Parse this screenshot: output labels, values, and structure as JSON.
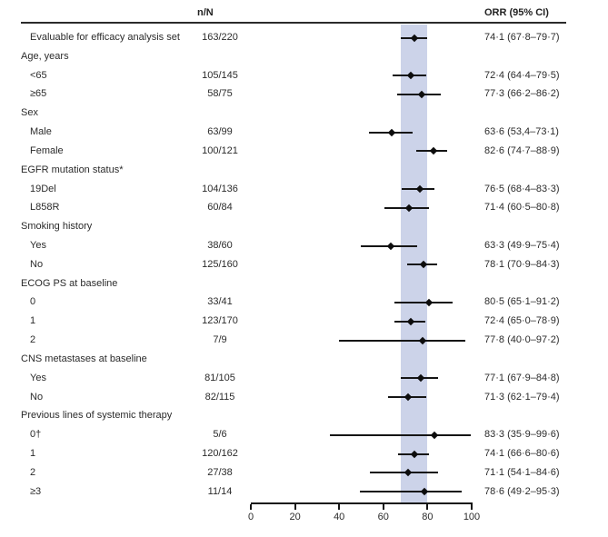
{
  "chart_data": {
    "type": "scatter",
    "subtype": "forest-plot",
    "columns": {
      "n_label": "n/N",
      "orr_label": "ORR (95% CI)"
    },
    "axis": {
      "min": 0,
      "max": 100,
      "ticks": [
        0,
        20,
        40,
        60,
        80,
        100
      ]
    },
    "band": {
      "low": 67.8,
      "high": 79.7,
      "meaning": "overall ORR 95% CI"
    },
    "colors": {
      "band": "#ccd3e9",
      "line": "#151515",
      "text": "#2b2b2b"
    },
    "rows": [
      {
        "group": false,
        "label": "Evaluable for efficacy analysis set",
        "n": "163/220",
        "orr": "74·1 (67·8–79·7)",
        "est": 74.1,
        "lo": 67.8,
        "hi": 79.7
      },
      {
        "group": true,
        "label": "Age, years",
        "n": "",
        "orr": "",
        "est": null,
        "lo": null,
        "hi": null
      },
      {
        "group": false,
        "label": "<65",
        "n": "105/145",
        "orr": "72·4 (64·4–79·5)",
        "est": 72.4,
        "lo": 64.4,
        "hi": 79.5
      },
      {
        "group": false,
        "label": "≥65",
        "n": "58/75",
        "orr": "77·3 (66·2–86·2)",
        "est": 77.3,
        "lo": 66.2,
        "hi": 86.2
      },
      {
        "group": true,
        "label": "Sex",
        "n": "",
        "orr": "",
        "est": null,
        "lo": null,
        "hi": null
      },
      {
        "group": false,
        "label": "Male",
        "n": "63/99",
        "orr": "63·6 (53,4–73·1)",
        "est": 63.6,
        "lo": 53.4,
        "hi": 73.1
      },
      {
        "group": false,
        "label": "Female",
        "n": "100/121",
        "orr": "82·6 (74·7–88·9)",
        "est": 82.6,
        "lo": 74.7,
        "hi": 88.9
      },
      {
        "group": true,
        "label": "EGFR mutation status*",
        "n": "",
        "orr": "",
        "est": null,
        "lo": null,
        "hi": null
      },
      {
        "group": false,
        "label": "19Del",
        "n": "104/136",
        "orr": "76·5 (68·4–83·3)",
        "est": 76.5,
        "lo": 68.4,
        "hi": 83.3
      },
      {
        "group": false,
        "label": "L858R",
        "n": "60/84",
        "orr": "71·4 (60·5–80·8)",
        "est": 71.4,
        "lo": 60.5,
        "hi": 80.8
      },
      {
        "group": true,
        "label": "Smoking history",
        "n": "",
        "orr": "",
        "est": null,
        "lo": null,
        "hi": null
      },
      {
        "group": false,
        "label": "Yes",
        "n": "38/60",
        "orr": "63·3 (49·9–75·4)",
        "est": 63.3,
        "lo": 49.9,
        "hi": 75.4
      },
      {
        "group": false,
        "label": "No",
        "n": "125/160",
        "orr": "78·1 (70·9–84·3)",
        "est": 78.1,
        "lo": 70.9,
        "hi": 84.3
      },
      {
        "group": true,
        "label": "ECOG PS at baseline",
        "n": "",
        "orr": "",
        "est": null,
        "lo": null,
        "hi": null
      },
      {
        "group": false,
        "label": "0",
        "n": "33/41",
        "orr": "80·5 (65·1–91·2)",
        "est": 80.5,
        "lo": 65.1,
        "hi": 91.2
      },
      {
        "group": false,
        "label": "1",
        "n": "123/170",
        "orr": "72·4 (65·0–78·9)",
        "est": 72.4,
        "lo": 65.0,
        "hi": 78.9
      },
      {
        "group": false,
        "label": "2",
        "n": "7/9",
        "orr": "77·8 (40·0–97·2)",
        "est": 77.8,
        "lo": 40.0,
        "hi": 97.2
      },
      {
        "group": true,
        "label": "CNS metastases at baseline",
        "n": "",
        "orr": "",
        "est": null,
        "lo": null,
        "hi": null
      },
      {
        "group": false,
        "label": "Yes",
        "n": "81/105",
        "orr": "77·1 (67·9–84·8)",
        "est": 77.1,
        "lo": 67.9,
        "hi": 84.8
      },
      {
        "group": false,
        "label": "No",
        "n": "82/115",
        "orr": "71·3 (62·1–79·4)",
        "est": 71.3,
        "lo": 62.1,
        "hi": 79.4
      },
      {
        "group": true,
        "label": "Previous lines of systemic therapy",
        "n": "",
        "orr": "",
        "est": null,
        "lo": null,
        "hi": null
      },
      {
        "group": false,
        "label": "0†",
        "n": "5/6",
        "orr": "83·3 (35·9–99·6)",
        "est": 83.3,
        "lo": 35.9,
        "hi": 99.6
      },
      {
        "group": false,
        "label": "1",
        "n": "120/162",
        "orr": "74·1 (66·6–80·6)",
        "est": 74.1,
        "lo": 66.6,
        "hi": 80.6
      },
      {
        "group": false,
        "label": "2",
        "n": "27/38",
        "orr": "71·1 (54·1–84·6)",
        "est": 71.1,
        "lo": 54.1,
        "hi": 84.6
      },
      {
        "group": false,
        "label": "≥3",
        "n": "11/14",
        "orr": "78·6 (49·2–95·3)",
        "est": 78.6,
        "lo": 49.2,
        "hi": 95.3
      }
    ]
  }
}
